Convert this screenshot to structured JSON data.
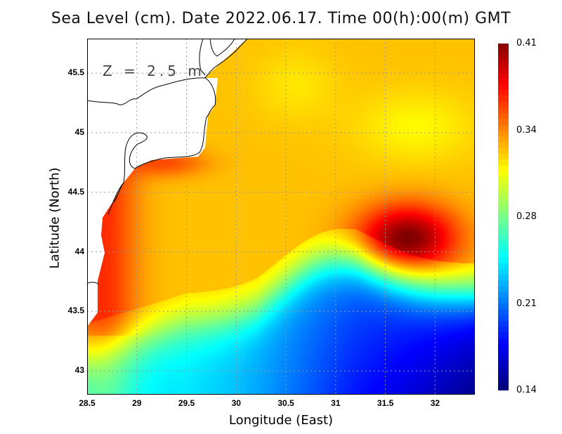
{
  "chart_data": {
    "type": "heatmap",
    "title": "Sea Level (cm). Date 2022.06.17. Time 00(h):00(m) GMT",
    "xlabel": "Longitude (East)",
    "ylabel": "Latitude (North)",
    "annotation": "Z = 2.5 m",
    "xlim": [
      28.5,
      32.4
    ],
    "ylim": [
      42.8,
      45.79
    ],
    "xticks": [
      "28.5",
      "29",
      "29.5",
      "30",
      "30.5",
      "31",
      "31.5",
      "32"
    ],
    "xtick_values": [
      28.5,
      29,
      29.5,
      30,
      30.5,
      31,
      31.5,
      32
    ],
    "yticks": [
      "43",
      "43.5",
      "44",
      "44.5",
      "45",
      "45.5"
    ],
    "ytick_values": [
      43,
      43.5,
      44,
      44.5,
      45,
      45.5
    ],
    "grid": true,
    "colorbar": {
      "min": 0.14,
      "max": 0.41,
      "labels": [
        "0.41",
        "0.34",
        "0.28",
        "0.21",
        "0.14"
      ],
      "colormap": "jet",
      "position": "right"
    },
    "features": [
      {
        "name": "anticyclonic maximum",
        "lon": 31.7,
        "lat": 44.1,
        "value": 0.41
      },
      {
        "name": "coastal high",
        "lon": 28.7,
        "lat": 44.2,
        "value": 0.37
      },
      {
        "name": "interior plateau",
        "lon": 30.3,
        "lat": 44.8,
        "value": 0.33
      },
      {
        "name": "northeast yellow patch",
        "lon": 31.8,
        "lat": 45.0,
        "value": 0.31
      },
      {
        "name": "southeast minimum",
        "lon": 32.3,
        "lat": 42.85,
        "value": 0.14
      },
      {
        "name": "southwest low",
        "lon": 29.3,
        "lat": 42.85,
        "value": 0.22
      }
    ]
  }
}
